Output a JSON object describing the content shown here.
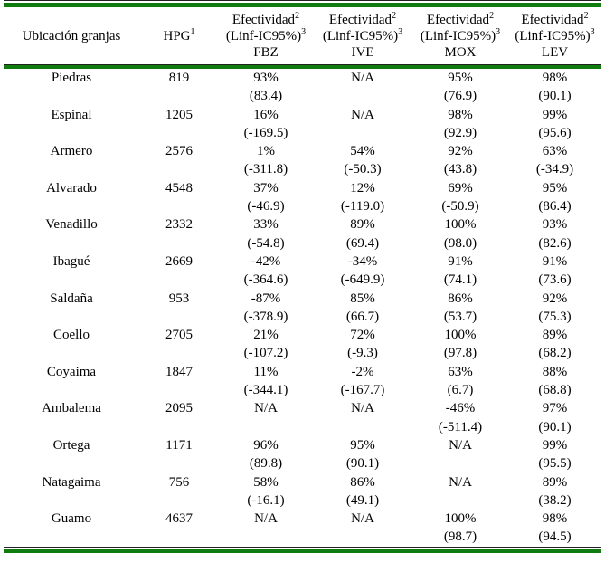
{
  "table": {
    "rules": {
      "green": "#107c10",
      "dark": "#222222"
    },
    "header": {
      "location_label": "Ubicación granjas",
      "hpg_label": "HPG",
      "hpg_sup": "1",
      "effectiveness_label": "Efectividad",
      "effectiveness_sup": "2",
      "ci_label": "(Linf-IC95%)",
      "ci_sup": "3",
      "drugs": [
        "FBZ",
        "IVE",
        "MOX",
        "LEV"
      ]
    },
    "rows": [
      {
        "location": "Piedras",
        "hpg": "819",
        "values": [
          [
            "93%",
            "(83.4)"
          ],
          [
            "N/A",
            ""
          ],
          [
            "95%",
            "(76.9)"
          ],
          [
            "98%",
            "(90.1)"
          ]
        ]
      },
      {
        "location": "Espinal",
        "hpg": "1205",
        "values": [
          [
            "16%",
            "(-169.5)"
          ],
          [
            "N/A",
            ""
          ],
          [
            "98%",
            "(92.9)"
          ],
          [
            "99%",
            "(95.6)"
          ]
        ]
      },
      {
        "location": "Armero",
        "hpg": "2576",
        "values": [
          [
            "1%",
            "(-311.8)"
          ],
          [
            "54%",
            "(-50.3)"
          ],
          [
            "92%",
            "(43.8)"
          ],
          [
            "63%",
            "(-34.9)"
          ]
        ]
      },
      {
        "location": "Alvarado",
        "hpg": "4548",
        "values": [
          [
            "37%",
            "(-46.9)"
          ],
          [
            "12%",
            "(-119.0)"
          ],
          [
            "69%",
            "(-50.9)"
          ],
          [
            "95%",
            "(86.4)"
          ]
        ]
      },
      {
        "location": "Venadillo",
        "hpg": "2332",
        "values": [
          [
            "33%",
            "(-54.8)"
          ],
          [
            "89%",
            "(69.4)"
          ],
          [
            "100%",
            "(98.0)"
          ],
          [
            "93%",
            "(82.6)"
          ]
        ]
      },
      {
        "location": "Ibagué",
        "hpg": "2669",
        "values": [
          [
            "-42%",
            "(-364.6)"
          ],
          [
            "-34%",
            "(-649.9)"
          ],
          [
            "91%",
            "(74.1)"
          ],
          [
            "91%",
            "(73.6)"
          ]
        ]
      },
      {
        "location": "Saldaña",
        "hpg": "953",
        "values": [
          [
            "-87%",
            "(-378.9)"
          ],
          [
            "85%",
            "(66.7)"
          ],
          [
            "86%",
            "(53.7)"
          ],
          [
            "92%",
            "(75.3)"
          ]
        ]
      },
      {
        "location": "Coello",
        "hpg": "2705",
        "values": [
          [
            "21%",
            "(-107.2)"
          ],
          [
            "72%",
            "(-9.3)"
          ],
          [
            "100%",
            "(97.8)"
          ],
          [
            "89%",
            "(68.2)"
          ]
        ]
      },
      {
        "location": "Coyaima",
        "hpg": "1847",
        "values": [
          [
            "11%",
            "(-344.1)"
          ],
          [
            "-2%",
            "(-167.7)"
          ],
          [
            "63%",
            "(6.7)"
          ],
          [
            "88%",
            "(68.8)"
          ]
        ]
      },
      {
        "location": "Ambalema",
        "hpg": "2095",
        "values": [
          [
            "N/A",
            ""
          ],
          [
            "N/A",
            ""
          ],
          [
            "-46%",
            "(-511.4)"
          ],
          [
            "97%",
            "(90.1)"
          ]
        ]
      },
      {
        "location": "Ortega",
        "hpg": "1171",
        "values": [
          [
            "96%",
            "(89.8)"
          ],
          [
            "95%",
            "(90.1)"
          ],
          [
            "N/A",
            ""
          ],
          [
            "99%",
            "(95.5)"
          ]
        ]
      },
      {
        "location": "Natagaima",
        "hpg": "756",
        "values": [
          [
            "58%",
            "(-16.1)"
          ],
          [
            "86%",
            "(49.1)"
          ],
          [
            "N/A",
            ""
          ],
          [
            "89%",
            "(38.2)"
          ]
        ]
      },
      {
        "location": "Guamo",
        "hpg": "4637",
        "values": [
          [
            "N/A",
            ""
          ],
          [
            "N/A",
            ""
          ],
          [
            "100%",
            "(98.7)"
          ],
          [
            "98%",
            "(94.5)"
          ]
        ]
      }
    ]
  }
}
